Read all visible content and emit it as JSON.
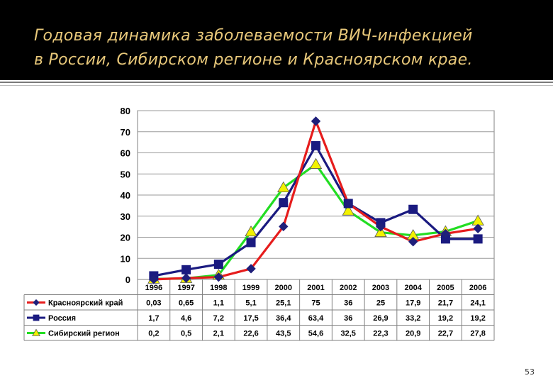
{
  "slide": {
    "title_line1": "Годовая динамика заболеваемости ВИЧ-инфекцией",
    "title_line2": "в России, Сибирском регионе и  Красноярском крае.",
    "page_number": "53",
    "title_color": "#e8c87a",
    "header_background": "#000000"
  },
  "chart_data": {
    "type": "line",
    "title": "",
    "xlabel": "",
    "ylabel": "",
    "categories": [
      "1996",
      "1997",
      "1998",
      "1999",
      "2000",
      "2001",
      "2002",
      "2003",
      "2004",
      "2005",
      "2006"
    ],
    "ylim": [
      0,
      80
    ],
    "yticks": [
      0,
      10,
      20,
      30,
      40,
      50,
      60,
      70,
      80
    ],
    "grid": true,
    "legend": "data-table",
    "series": [
      {
        "name": "Красноярский край",
        "color": "#e61c1c",
        "marker": "diamond",
        "marker_color": "#1f1f7a",
        "values": [
          0.03,
          0.65,
          1.1,
          5.1,
          25.1,
          75,
          36,
          25,
          17.9,
          21.7,
          24.1
        ],
        "labels": [
          "0,03",
          "0,65",
          "1,1",
          "5,1",
          "25,1",
          "75",
          "36",
          "25",
          "17,9",
          "21,7",
          "24,1"
        ]
      },
      {
        "name": "Россия",
        "color": "#1a1a80",
        "marker": "square",
        "marker_color": "#1a1a80",
        "values": [
          1.7,
          4.6,
          7.2,
          17.5,
          36.4,
          63.4,
          36,
          26.9,
          33.2,
          19.2,
          19.2
        ],
        "labels": [
          "1,7",
          "4,6",
          "7,2",
          "17,5",
          "36,4",
          "63,4",
          "36",
          "26,9",
          "33,2",
          "19,2",
          "19,2"
        ]
      },
      {
        "name": "Сибирский регион",
        "color": "#22dd22",
        "marker": "triangle",
        "marker_color": "#f2f200",
        "values": [
          0.2,
          0.5,
          2.1,
          22.6,
          43.5,
          54.6,
          32.5,
          22.3,
          20.9,
          22.7,
          27.8
        ],
        "labels": [
          "0,2",
          "0,5",
          "2,1",
          "22,6",
          "43,5",
          "54,6",
          "32,5",
          "22,3",
          "20,9",
          "22,7",
          "27,8"
        ]
      }
    ]
  }
}
